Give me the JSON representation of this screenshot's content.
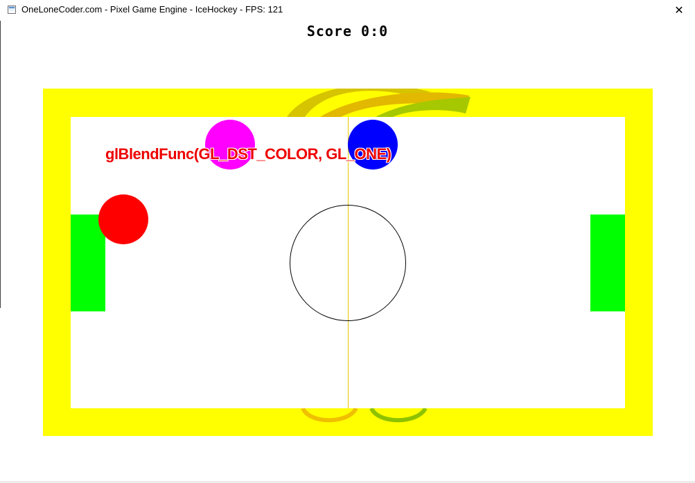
{
  "window": {
    "title": "OneLoneCoder.com - Pixel Game Engine - IceHockey - FPS: 121",
    "close_glyph": "✕"
  },
  "hud": {
    "score_text": "Score 0:0"
  },
  "overlay": {
    "blend_text": "glBlendFunc(GL_DST_COLOR, GL_ONE)"
  },
  "colors": {
    "border": "#ffff00",
    "ice": "#ffffff",
    "goal": "#00ff00",
    "mallet_left": "#ff00ff",
    "mallet_right": "#0000ff",
    "puck": "#ff0000",
    "blend_text": "#ee0000"
  }
}
